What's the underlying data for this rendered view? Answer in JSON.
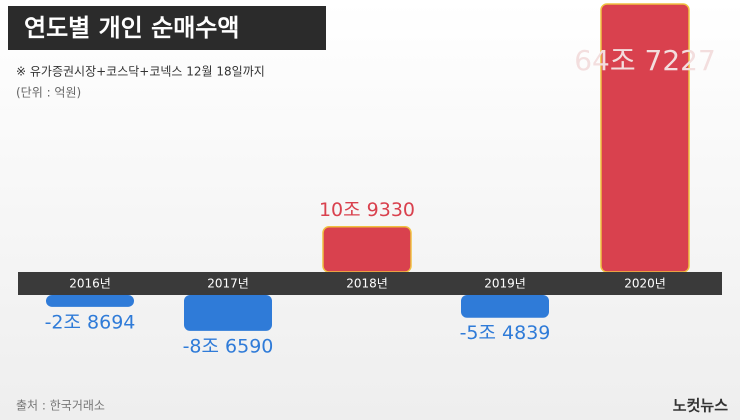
{
  "chart_data": {
    "type": "bar",
    "title": "연도별 개인 순매수액",
    "subtitle": "※ 유가증권시장+코스닥+코넥스 12월 18일까지",
    "unit_note": "(단위 : 억원)",
    "source": "출처 : 한국거래소",
    "logo": "노컷뉴스",
    "categories": [
      "2016년",
      "2017년",
      "2018년",
      "2019년",
      "2020년"
    ],
    "values": [
      -28694,
      -86590,
      109330,
      -54839,
      647227
    ],
    "value_labels": [
      "-2조 8694",
      "-8조 6590",
      "10조 9330",
      "-5조 4839",
      "64조 7227"
    ],
    "color_positive": "#d9414e",
    "color_negative": "#2f7bd8"
  }
}
